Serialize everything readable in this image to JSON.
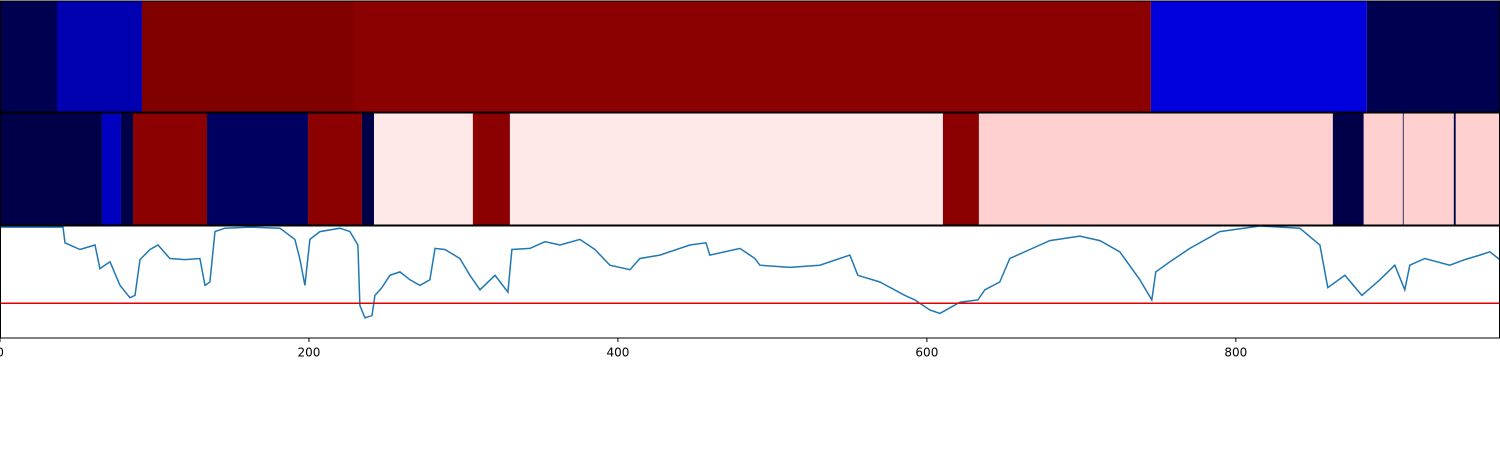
{
  "chart_data": [
    {
      "type": "strip",
      "xlim": [
        0,
        971
      ],
      "segments": [
        {
          "start": 0,
          "end": 36.9,
          "color": "#000050"
        },
        {
          "start": 36.9,
          "end": 91.9,
          "color": "#0000b0"
        },
        {
          "start": 91.9,
          "end": 228.5,
          "color": "#800000"
        },
        {
          "start": 228.5,
          "end": 745,
          "color": "#8b0000"
        },
        {
          "start": 745,
          "end": 884.8,
          "color": "#0000dd"
        },
        {
          "start": 884.8,
          "end": 971,
          "color": "#000050"
        }
      ]
    },
    {
      "type": "strip",
      "xlim": [
        0,
        971
      ],
      "segments": [
        {
          "start": 0,
          "end": 66,
          "color": "#000048"
        },
        {
          "start": 66,
          "end": 78.3,
          "color": "#0000c0"
        },
        {
          "start": 78.3,
          "end": 86.1,
          "color": "#000048"
        },
        {
          "start": 86.1,
          "end": 134,
          "color": "#8b0000"
        },
        {
          "start": 134,
          "end": 199.4,
          "color": "#000060"
        },
        {
          "start": 199.4,
          "end": 234.3,
          "color": "#8b0000"
        },
        {
          "start": 234.3,
          "end": 242.1,
          "color": "#000048"
        },
        {
          "start": 242.1,
          "end": 306.1,
          "color": "#ffe8e8"
        },
        {
          "start": 306.1,
          "end": 330.1,
          "color": "#8b0000"
        },
        {
          "start": 330.1,
          "end": 610.4,
          "color": "#ffe8e8"
        },
        {
          "start": 610.4,
          "end": 633.7,
          "color": "#8b0000"
        },
        {
          "start": 633.7,
          "end": 862.8,
          "color": "#ffd0d0"
        },
        {
          "start": 862.8,
          "end": 882.8,
          "color": "#000048"
        },
        {
          "start": 882.8,
          "end": 908.1,
          "color": "#ffd0d0"
        },
        {
          "start": 908.1,
          "end": 908.7,
          "color": "#000048"
        },
        {
          "start": 908.7,
          "end": 941.1,
          "color": "#ffd0d0"
        },
        {
          "start": 941.1,
          "end": 942.4,
          "color": "#000048"
        },
        {
          "start": 942.4,
          "end": 971,
          "color": "#ffd0d0"
        }
      ]
    },
    {
      "type": "line",
      "xlim": [
        0,
        971
      ],
      "ylim": [
        0,
        1
      ],
      "xticks": [
        0,
        200,
        400,
        600,
        800
      ],
      "color": "#1f77b4",
      "hline": 0.31,
      "hline_color": "#e00000",
      "x": [
        0,
        40.8,
        42.1,
        51.8,
        61.5,
        64.7,
        71.2,
        77.7,
        84.1,
        87.4,
        90.6,
        97.1,
        102.3,
        110,
        119.7,
        129.4,
        132.7,
        135.9,
        139.2,
        145.6,
        161.8,
        181.2,
        190.9,
        194.2,
        197.4,
        200.6,
        207.1,
        220.1,
        226.5,
        231.7,
        233,
        236.2,
        240.8,
        242.7,
        247.2,
        252.4,
        258.9,
        265.4,
        271.8,
        278.3,
        281.6,
        288,
        297.7,
        304.2,
        310.7,
        320.4,
        328.8,
        331.4,
        343,
        352.8,
        362.5,
        375.4,
        385.1,
        394.8,
        407.8,
        414.2,
        427.2,
        446.6,
        457,
        459.5,
        479,
        488.7,
        491.9,
        511.3,
        530.7,
        550.2,
        555.3,
        569.6,
        585.8,
        592.2,
        601.9,
        608.4,
        614.9,
        621.4,
        633,
        637.5,
        647.2,
        653.7,
        666.7,
        679.6,
        699,
        712,
        724.9,
        737.9,
        745.6,
        748.2,
        757.3,
        770.2,
        789.6,
        815.5,
        841.4,
        854.4,
        859.5,
        870.6,
        881.6,
        893.2,
        902.9,
        909.4,
        912.6,
        922.3,
        938.5,
        948.2,
        957.9,
        964.4,
        970.9
      ],
      "values": [
        0.99,
        0.99,
        0.85,
        0.79,
        0.83,
        0.62,
        0.68,
        0.47,
        0.36,
        0.38,
        0.7,
        0.79,
        0.83,
        0.71,
        0.7,
        0.71,
        0.47,
        0.5,
        0.95,
        0.98,
        0.99,
        0.98,
        0.88,
        0.7,
        0.47,
        0.88,
        0.95,
        0.98,
        0.95,
        0.83,
        0.29,
        0.18,
        0.2,
        0.38,
        0.45,
        0.56,
        0.59,
        0.52,
        0.47,
        0.52,
        0.8,
        0.79,
        0.71,
        0.56,
        0.43,
        0.56,
        0.41,
        0.79,
        0.8,
        0.86,
        0.83,
        0.88,
        0.79,
        0.65,
        0.61,
        0.71,
        0.74,
        0.83,
        0.85,
        0.74,
        0.8,
        0.71,
        0.65,
        0.63,
        0.65,
        0.74,
        0.56,
        0.5,
        0.38,
        0.34,
        0.25,
        0.22,
        0.27,
        0.32,
        0.34,
        0.43,
        0.5,
        0.71,
        0.79,
        0.87,
        0.91,
        0.87,
        0.77,
        0.52,
        0.34,
        0.59,
        0.68,
        0.8,
        0.95,
        1.0,
        0.98,
        0.83,
        0.45,
        0.56,
        0.38,
        0.52,
        0.65,
        0.43,
        0.65,
        0.71,
        0.65,
        0.7,
        0.74,
        0.77,
        0.7
      ]
    }
  ]
}
